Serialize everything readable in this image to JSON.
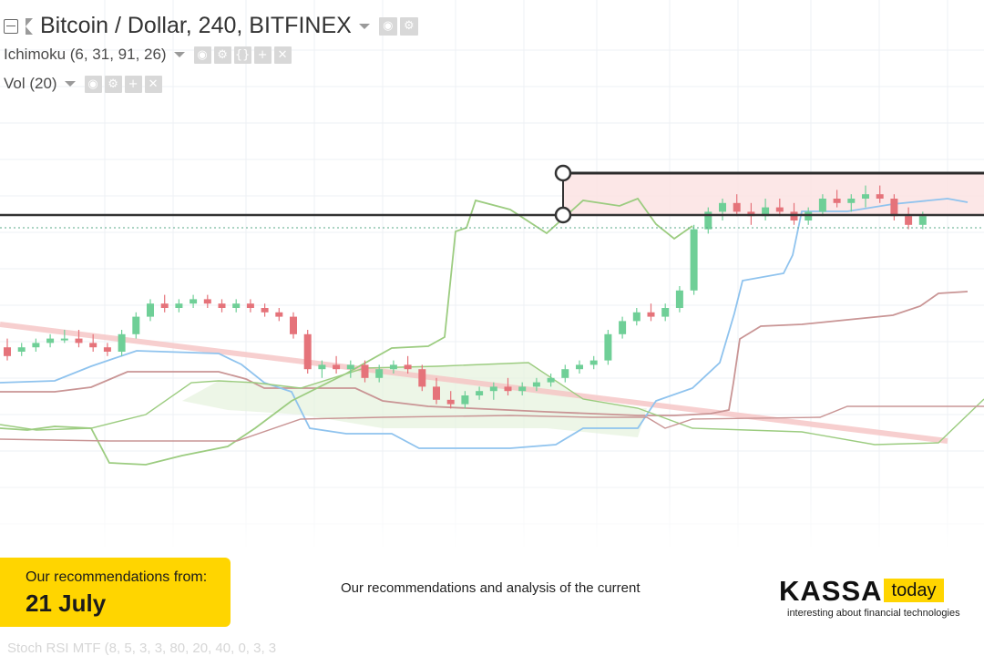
{
  "legend": {
    "symbol_title": "Bitcoin / Dollar, 240, BITFINEX",
    "ichimoku": "Ichimoku (6, 31, 91, 26)",
    "volume": "Vol (20)",
    "button_icons": [
      "eye-icon",
      "gear-icon",
      "braces-icon",
      "plus-icon",
      "close-icon"
    ]
  },
  "oscillator_label": "Stoch RSI MTF (8, 5, 3, 3, 80, 20, 40, 0, 3, 3",
  "promo": {
    "line1": "Our recommendations from:",
    "date": "21 July"
  },
  "center_text": "Our recommendations and analysis of the current",
  "logo": {
    "name": "KASSA",
    "badge": "today",
    "tagline": "interesting about financial technologies"
  },
  "colors": {
    "bullish": "#6fcf97",
    "bearish": "#e5737a",
    "tenkan": "#8fc3ee",
    "kijun": "#c99595",
    "chikou": "#9ccc80",
    "cloud_green": "#e6f2dd",
    "accent": "#ffd500"
  },
  "chart_data": {
    "type": "candlestick",
    "indicators": [
      "Ichimoku",
      "Volume"
    ],
    "drawings": [
      "horizontal-range-rectangle",
      "descending-trendline"
    ],
    "candles": [
      {
        "o": 0.56,
        "h": 0.58,
        "l": 0.53,
        "c": 0.54
      },
      {
        "o": 0.55,
        "h": 0.57,
        "l": 0.54,
        "c": 0.56
      },
      {
        "o": 0.56,
        "h": 0.58,
        "l": 0.55,
        "c": 0.57
      },
      {
        "o": 0.57,
        "h": 0.59,
        "l": 0.56,
        "c": 0.58
      },
      {
        "o": 0.58,
        "h": 0.6,
        "l": 0.57,
        "c": 0.58
      },
      {
        "o": 0.58,
        "h": 0.6,
        "l": 0.56,
        "c": 0.57
      },
      {
        "o": 0.57,
        "h": 0.59,
        "l": 0.55,
        "c": 0.56
      },
      {
        "o": 0.56,
        "h": 0.57,
        "l": 0.54,
        "c": 0.55
      },
      {
        "o": 0.55,
        "h": 0.6,
        "l": 0.54,
        "c": 0.59
      },
      {
        "o": 0.59,
        "h": 0.64,
        "l": 0.58,
        "c": 0.63
      },
      {
        "o": 0.63,
        "h": 0.67,
        "l": 0.62,
        "c": 0.66
      },
      {
        "o": 0.66,
        "h": 0.68,
        "l": 0.64,
        "c": 0.65
      },
      {
        "o": 0.65,
        "h": 0.67,
        "l": 0.64,
        "c": 0.66
      },
      {
        "o": 0.66,
        "h": 0.68,
        "l": 0.65,
        "c": 0.67
      },
      {
        "o": 0.67,
        "h": 0.68,
        "l": 0.65,
        "c": 0.66
      },
      {
        "o": 0.66,
        "h": 0.67,
        "l": 0.64,
        "c": 0.65
      },
      {
        "o": 0.65,
        "h": 0.67,
        "l": 0.64,
        "c": 0.66
      },
      {
        "o": 0.66,
        "h": 0.67,
        "l": 0.64,
        "c": 0.65
      },
      {
        "o": 0.65,
        "h": 0.66,
        "l": 0.63,
        "c": 0.64
      },
      {
        "o": 0.64,
        "h": 0.65,
        "l": 0.62,
        "c": 0.63
      },
      {
        "o": 0.63,
        "h": 0.64,
        "l": 0.58,
        "c": 0.59
      },
      {
        "o": 0.59,
        "h": 0.6,
        "l": 0.5,
        "c": 0.51
      },
      {
        "o": 0.51,
        "h": 0.53,
        "l": 0.49,
        "c": 0.52
      },
      {
        "o": 0.52,
        "h": 0.54,
        "l": 0.5,
        "c": 0.51
      },
      {
        "o": 0.51,
        "h": 0.53,
        "l": 0.49,
        "c": 0.52
      },
      {
        "o": 0.52,
        "h": 0.53,
        "l": 0.48,
        "c": 0.49
      },
      {
        "o": 0.49,
        "h": 0.52,
        "l": 0.48,
        "c": 0.51
      },
      {
        "o": 0.51,
        "h": 0.53,
        "l": 0.5,
        "c": 0.52
      },
      {
        "o": 0.52,
        "h": 0.54,
        "l": 0.5,
        "c": 0.51
      },
      {
        "o": 0.51,
        "h": 0.52,
        "l": 0.46,
        "c": 0.47
      },
      {
        "o": 0.47,
        "h": 0.49,
        "l": 0.43,
        "c": 0.44
      },
      {
        "o": 0.44,
        "h": 0.46,
        "l": 0.42,
        "c": 0.43
      },
      {
        "o": 0.43,
        "h": 0.46,
        "l": 0.42,
        "c": 0.45
      },
      {
        "o": 0.45,
        "h": 0.47,
        "l": 0.44,
        "c": 0.46
      },
      {
        "o": 0.46,
        "h": 0.48,
        "l": 0.44,
        "c": 0.47
      },
      {
        "o": 0.47,
        "h": 0.49,
        "l": 0.45,
        "c": 0.46
      },
      {
        "o": 0.46,
        "h": 0.48,
        "l": 0.45,
        "c": 0.47
      },
      {
        "o": 0.47,
        "h": 0.49,
        "l": 0.46,
        "c": 0.48
      },
      {
        "o": 0.48,
        "h": 0.5,
        "l": 0.47,
        "c": 0.49
      },
      {
        "o": 0.49,
        "h": 0.52,
        "l": 0.48,
        "c": 0.51
      },
      {
        "o": 0.51,
        "h": 0.53,
        "l": 0.5,
        "c": 0.52
      },
      {
        "o": 0.52,
        "h": 0.54,
        "l": 0.51,
        "c": 0.53
      },
      {
        "o": 0.53,
        "h": 0.6,
        "l": 0.52,
        "c": 0.59
      },
      {
        "o": 0.59,
        "h": 0.63,
        "l": 0.58,
        "c": 0.62
      },
      {
        "o": 0.62,
        "h": 0.65,
        "l": 0.61,
        "c": 0.64
      },
      {
        "o": 0.64,
        "h": 0.66,
        "l": 0.62,
        "c": 0.63
      },
      {
        "o": 0.63,
        "h": 0.66,
        "l": 0.62,
        "c": 0.65
      },
      {
        "o": 0.65,
        "h": 0.7,
        "l": 0.64,
        "c": 0.69
      },
      {
        "o": 0.69,
        "h": 0.84,
        "l": 0.68,
        "c": 0.83
      },
      {
        "o": 0.83,
        "h": 0.88,
        "l": 0.82,
        "c": 0.87
      },
      {
        "o": 0.87,
        "h": 0.9,
        "l": 0.85,
        "c": 0.89
      },
      {
        "o": 0.89,
        "h": 0.91,
        "l": 0.86,
        "c": 0.87
      },
      {
        "o": 0.87,
        "h": 0.89,
        "l": 0.84,
        "c": 0.86
      },
      {
        "o": 0.86,
        "h": 0.9,
        "l": 0.85,
        "c": 0.88
      },
      {
        "o": 0.88,
        "h": 0.9,
        "l": 0.86,
        "c": 0.87
      },
      {
        "o": 0.87,
        "h": 0.89,
        "l": 0.84,
        "c": 0.85
      },
      {
        "o": 0.85,
        "h": 0.88,
        "l": 0.84,
        "c": 0.87
      },
      {
        "o": 0.87,
        "h": 0.91,
        "l": 0.86,
        "c": 0.9
      },
      {
        "o": 0.9,
        "h": 0.92,
        "l": 0.88,
        "c": 0.89
      },
      {
        "o": 0.89,
        "h": 0.91,
        "l": 0.87,
        "c": 0.9
      },
      {
        "o": 0.9,
        "h": 0.93,
        "l": 0.88,
        "c": 0.91
      },
      {
        "o": 0.91,
        "h": 0.93,
        "l": 0.89,
        "c": 0.9
      },
      {
        "o": 0.9,
        "h": 0.91,
        "l": 0.85,
        "c": 0.86
      },
      {
        "o": 0.86,
        "h": 0.88,
        "l": 0.83,
        "c": 0.84
      },
      {
        "o": 0.84,
        "h": 0.87,
        "l": 0.83,
        "c": 0.86
      }
    ]
  }
}
